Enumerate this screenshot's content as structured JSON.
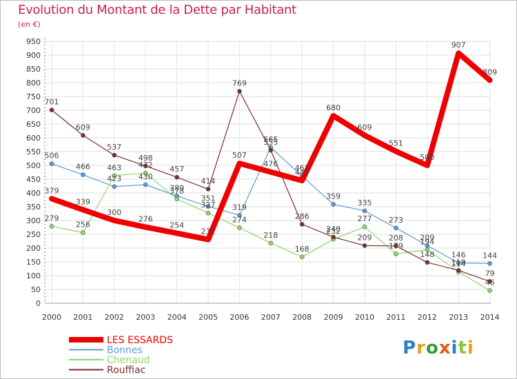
{
  "title": "Evolution du Montant de la Dette par Habitant",
  "subtitle": "(en €)",
  "logo": {
    "text": "Proxiti",
    "colors": [
      "#2a7fc9",
      "#e8a21c",
      "#3a9a3a",
      "#e05a1e",
      "#2a7fc9",
      "#8cc43c",
      "#e8a21c"
    ]
  },
  "chart_data": {
    "type": "line",
    "x": [
      2000,
      2001,
      2002,
      2003,
      2004,
      2005,
      2006,
      2007,
      2008,
      2009,
      2010,
      2011,
      2012,
      2013,
      2014
    ],
    "ylim": [
      0,
      950
    ],
    "yticks": [
      0,
      50,
      100,
      150,
      200,
      250,
      300,
      350,
      400,
      450,
      500,
      550,
      600,
      650,
      700,
      750,
      800,
      850,
      900,
      950
    ],
    "grid": true,
    "legend_position": "bottom-left",
    "series": [
      {
        "name": "LES ESSARDS",
        "color": "#ee0000",
        "width": 8,
        "values": [
          379,
          339,
          300,
          276,
          254,
          231,
          507,
          476,
          445,
          680,
          609,
          551,
          500,
          907,
          809
        ]
      },
      {
        "name": "Bonnes",
        "color": "#5b9bd5",
        "width": 1.2,
        "values": [
          506,
          466,
          423,
          430,
          389,
          351,
          319,
          565,
          461,
          359,
          335,
          273,
          209,
          146,
          144
        ]
      },
      {
        "name": "Chenaud",
        "color": "#8fd66a",
        "width": 1.2,
        "values": [
          279,
          256,
          463,
          472,
          378,
          327,
          274,
          218,
          168,
          232,
          277,
          179,
          194,
          114,
          46
        ]
      },
      {
        "name": "Rouffiac",
        "color": "#7b2b2b",
        "width": 1.2,
        "values": [
          701,
          609,
          537,
          498,
          457,
          414,
          769,
          555,
          286,
          240,
          209,
          208,
          148,
          119,
          79
        ]
      }
    ]
  }
}
